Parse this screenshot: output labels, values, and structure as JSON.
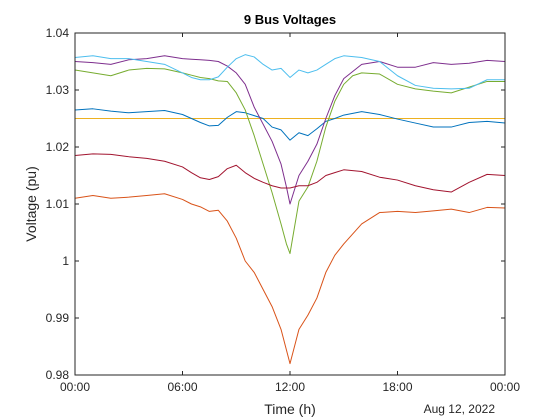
{
  "chart_data": {
    "type": "line",
    "title": "9 Bus Voltages",
    "xlabel": "Time (h)",
    "ylabel": "Voltage (pu)",
    "date_label": "Aug 12, 2022",
    "xlim": [
      0,
      24
    ],
    "ylim": [
      0.98,
      1.04
    ],
    "xticks": [
      0,
      6,
      12,
      18,
      24
    ],
    "xtick_labels": [
      "00:00",
      "06:00",
      "12:00",
      "18:00",
      "00:00"
    ],
    "yticks": [
      0.98,
      0.99,
      1.0,
      1.01,
      1.02,
      1.03,
      1.04
    ],
    "ytick_labels": [
      "0.98",
      "0.99",
      "1",
      "1.01",
      "1.02",
      "1.03",
      "1.04"
    ],
    "grid": false,
    "series": [
      {
        "color": "#0072BD",
        "x": [
          0,
          24
        ],
        "y": [
          1.04,
          1.04
        ]
      },
      {
        "color": "#EDB120",
        "x": [
          0,
          24
        ],
        "y": [
          1.025,
          1.025
        ]
      },
      {
        "color": "#0072BD",
        "x": [
          0,
          1,
          2,
          3,
          4,
          5,
          6,
          6.5,
          7,
          7.5,
          8,
          8.5,
          9,
          9.5,
          10,
          10.5,
          11,
          11.5,
          12,
          12.5,
          13,
          13.5,
          14,
          14.5,
          15,
          16,
          17,
          18,
          19,
          20,
          21,
          22,
          23,
          24
        ],
        "y": [
          1.0265,
          1.0267,
          1.0263,
          1.026,
          1.0262,
          1.0264,
          1.0257,
          1.025,
          1.0243,
          1.0237,
          1.0238,
          1.0252,
          1.0262,
          1.026,
          1.0255,
          1.025,
          1.0235,
          1.023,
          1.0212,
          1.0225,
          1.022,
          1.0232,
          1.0245,
          1.025,
          1.0256,
          1.0262,
          1.0257,
          1.0249,
          1.0242,
          1.0235,
          1.0235,
          1.0243,
          1.0245,
          1.0242
        ]
      },
      {
        "color": "#D95319",
        "x": [
          0,
          1,
          2,
          3,
          4,
          5,
          6,
          6.5,
          7,
          7.5,
          8,
          8.5,
          9,
          9.5,
          10,
          10.5,
          11,
          11.5,
          12,
          12.5,
          13,
          13.5,
          14,
          14.5,
          15,
          16,
          17,
          18,
          19,
          20,
          21,
          22,
          23,
          24
        ],
        "y": [
          1.011,
          1.0115,
          1.011,
          1.0112,
          1.0115,
          1.0118,
          1.0108,
          1.01,
          1.0095,
          1.0087,
          1.0089,
          1.007,
          1.004,
          1.0,
          0.998,
          0.995,
          0.992,
          0.988,
          0.982,
          0.988,
          0.9905,
          0.9935,
          0.998,
          1.001,
          1.003,
          1.0065,
          1.0085,
          1.0087,
          1.0085,
          1.0088,
          1.0091,
          1.0085,
          1.0094,
          1.0093
        ]
      },
      {
        "color": "#7E2F8E",
        "x": [
          0,
          1,
          2,
          3,
          4,
          5,
          6,
          6.5,
          7,
          7.5,
          8,
          8.5,
          9,
          9.5,
          10,
          10.5,
          11,
          11.5,
          11.8,
          12,
          12.3,
          12.5,
          13,
          13.5,
          14,
          14.5,
          15,
          16,
          17,
          18,
          19,
          20,
          21,
          22,
          23,
          24
        ],
        "y": [
          1.035,
          1.0348,
          1.0345,
          1.0353,
          1.0355,
          1.036,
          1.0355,
          1.0354,
          1.0353,
          1.0352,
          1.035,
          1.0342,
          1.033,
          1.031,
          1.027,
          1.024,
          1.021,
          1.017,
          1.013,
          1.01,
          1.013,
          1.015,
          1.0175,
          1.0205,
          1.025,
          1.029,
          1.032,
          1.0345,
          1.035,
          1.034,
          1.034,
          1.0348,
          1.0345,
          1.0347,
          1.0352,
          1.035
        ]
      },
      {
        "color": "#77AC30",
        "x": [
          0,
          1,
          2,
          3,
          4,
          5,
          6,
          6.5,
          7,
          7.5,
          8,
          8.5,
          9,
          9.5,
          10,
          10.5,
          11,
          11.5,
          11.8,
          12,
          12.2,
          12.5,
          13,
          13.5,
          14,
          14.5,
          15,
          15.5,
          16,
          17,
          18,
          19,
          20,
          21,
          22,
          23,
          24
        ],
        "y": [
          1.0335,
          1.033,
          1.0325,
          1.0335,
          1.0338,
          1.0337,
          1.033,
          1.0326,
          1.0322,
          1.032,
          1.0316,
          1.0315,
          1.0295,
          1.0265,
          1.022,
          1.017,
          1.012,
          1.0065,
          1.003,
          1.0013,
          1.005,
          1.0105,
          1.013,
          1.0175,
          1.0235,
          1.028,
          1.031,
          1.0325,
          1.033,
          1.0328,
          1.031,
          1.0302,
          1.0298,
          1.0295,
          1.0305,
          1.0315,
          1.0315
        ]
      },
      {
        "color": "#4DBEEE",
        "x": [
          0,
          1,
          2,
          3,
          4,
          5,
          6,
          6.5,
          7,
          7.5,
          8,
          8.5,
          9,
          9.5,
          10,
          10.5,
          11,
          11.5,
          12,
          12.5,
          13,
          13.5,
          14,
          14.5,
          15,
          16,
          17,
          18,
          19,
          20,
          21,
          22,
          23,
          24
        ],
        "y": [
          1.0357,
          1.036,
          1.0355,
          1.0355,
          1.035,
          1.0345,
          1.033,
          1.0322,
          1.0318,
          1.0318,
          1.0323,
          1.034,
          1.0355,
          1.0362,
          1.0358,
          1.0345,
          1.0335,
          1.0338,
          1.0322,
          1.0335,
          1.033,
          1.0335,
          1.0345,
          1.0355,
          1.036,
          1.0357,
          1.035,
          1.0325,
          1.0308,
          1.0303,
          1.0302,
          1.0303,
          1.0318,
          1.0318
        ]
      },
      {
        "color": "#A2142F",
        "x": [
          0,
          1,
          2,
          3,
          4,
          5,
          6,
          6.5,
          7,
          7.5,
          8,
          8.5,
          9,
          9.5,
          10,
          10.5,
          11,
          11.5,
          12,
          12.5,
          13,
          13.5,
          14,
          14.5,
          15,
          16,
          17,
          18,
          19,
          20,
          21,
          22,
          23,
          24
        ],
        "y": [
          1.0185,
          1.0188,
          1.0187,
          1.0183,
          1.018,
          1.0175,
          1.0165,
          1.0155,
          1.0146,
          1.0143,
          1.0148,
          1.0162,
          1.0168,
          1.0155,
          1.0145,
          1.0138,
          1.0132,
          1.0128,
          1.0128,
          1.0132,
          1.0132,
          1.0138,
          1.015,
          1.0155,
          1.016,
          1.0157,
          1.0147,
          1.0142,
          1.0132,
          1.0125,
          1.0121,
          1.0138,
          1.0152,
          1.015
        ]
      }
    ]
  }
}
